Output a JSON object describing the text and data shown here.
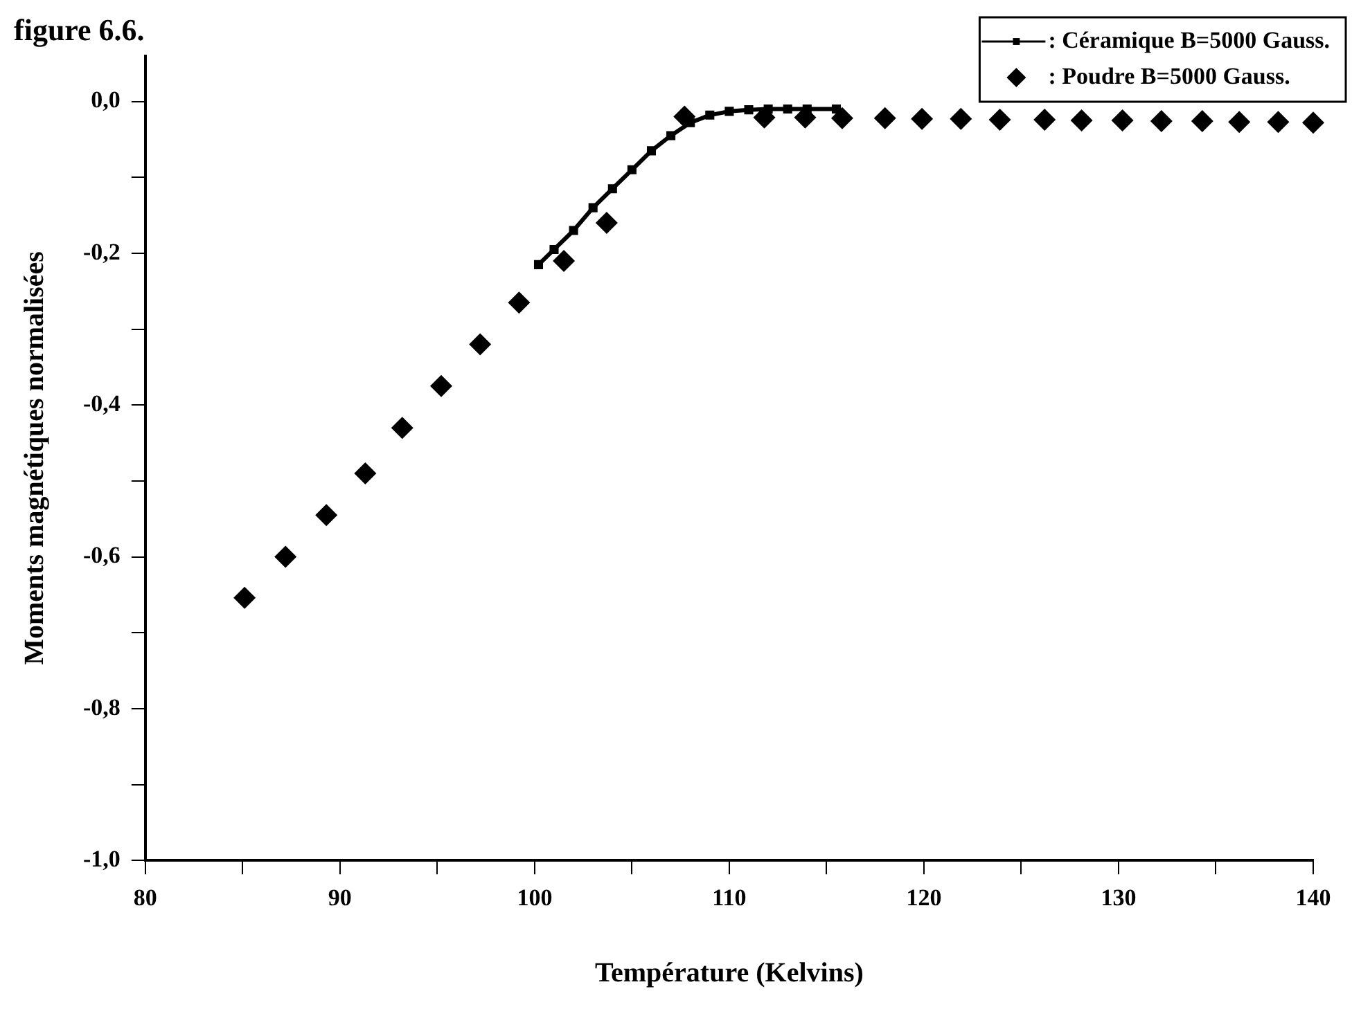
{
  "chart_data": {
    "type": "scatter",
    "title": "figure 6.6.",
    "xlabel": "Température (Kelvins)",
    "ylabel": "Moments magnétiques normalisées",
    "xlim": [
      80,
      140
    ],
    "xticks": [
      80,
      {
        "value": 85,
        "label": null
      },
      90,
      {
        "value": 95,
        "label": null
      },
      100,
      {
        "value": 105,
        "label": null
      },
      110,
      {
        "value": 115,
        "label": null
      },
      120,
      {
        "value": 125,
        "label": null
      },
      130,
      {
        "value": 135,
        "label": null
      },
      140
    ],
    "ylim": [
      -1.0,
      0.06
    ],
    "yticks": [
      {
        "value": -1.0,
        "label": "-1,0"
      },
      {
        "value": -0.9,
        "label": null
      },
      {
        "value": -0.8,
        "label": "-0,8"
      },
      {
        "value": -0.7,
        "label": null
      },
      {
        "value": -0.6,
        "label": "-0,6"
      },
      {
        "value": -0.5,
        "label": null
      },
      {
        "value": -0.4,
        "label": "-0,4"
      },
      {
        "value": -0.3,
        "label": null
      },
      {
        "value": -0.2,
        "label": "-0,2"
      },
      {
        "value": -0.1,
        "label": null
      },
      {
        "value": 0.0,
        "label": "0,0"
      }
    ],
    "grid": false,
    "legend": "top right",
    "series": [
      {
        "name": ": Céramique B=5000 Gauss.",
        "type": "line",
        "marker": "square",
        "line_style": "solid",
        "color": "#000000",
        "x": [
          100.2,
          101,
          102,
          103,
          104,
          105,
          106,
          107,
          108,
          109,
          110,
          111,
          112,
          113,
          114,
          115.5
        ],
        "values": [
          -0.215,
          -0.195,
          -0.17,
          -0.14,
          -0.115,
          -0.09,
          -0.065,
          -0.045,
          -0.028,
          -0.018,
          -0.013,
          -0.011,
          -0.01,
          -0.01,
          -0.01,
          -0.01
        ]
      },
      {
        "name": ": Poudre B=5000 Gauss.",
        "type": "scatter",
        "marker": "diamond",
        "color": "#000000",
        "x": [
          85.1,
          87.2,
          89.3,
          91.3,
          93.2,
          95.2,
          97.2,
          99.2,
          101.5,
          103.7,
          107.7,
          111.8,
          113.9,
          115.8,
          118.0,
          119.9,
          121.9,
          123.9,
          126.2,
          128.1,
          130.2,
          132.2,
          134.3,
          136.2,
          138.2,
          140.0
        ],
        "values": [
          -0.654,
          -0.6,
          -0.545,
          -0.49,
          -0.43,
          -0.375,
          -0.32,
          -0.265,
          -0.21,
          -0.16,
          -0.02,
          -0.021,
          -0.021,
          -0.022,
          -0.022,
          -0.023,
          -0.023,
          -0.024,
          -0.024,
          -0.025,
          -0.025,
          -0.026,
          -0.026,
          -0.027,
          -0.027,
          -0.028
        ]
      }
    ]
  }
}
